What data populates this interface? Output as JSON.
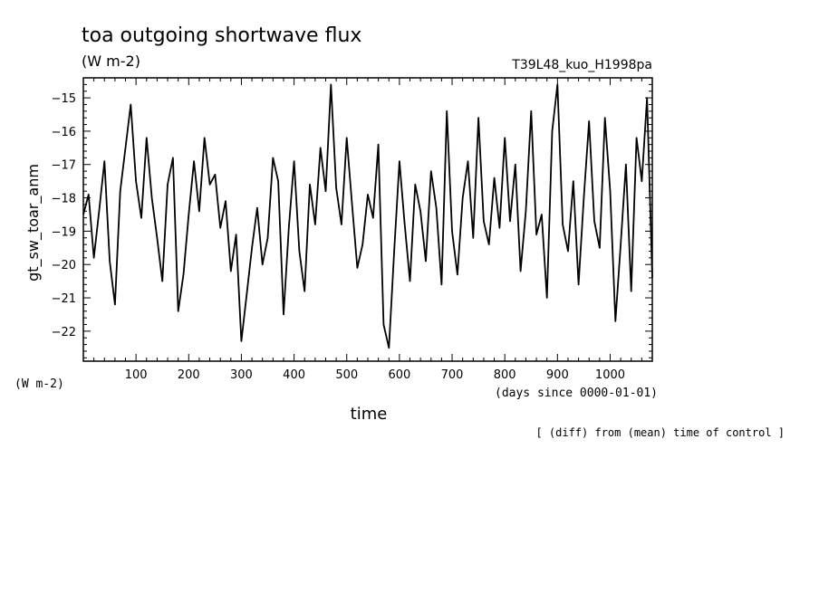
{
  "chart_data": {
    "type": "line",
    "title": "toa outgoing shortwave flux",
    "units_label": "(W m-2)",
    "run_label": "T39L48_kuo_H1998pa",
    "ylabel": "gt_sw_toar_anm",
    "y_units_label": "(W m-2)",
    "xlabel": "time",
    "x_units_label": "(days since 0000-01-01)",
    "note": "[ (diff) from (mean) time of control ]",
    "xlim": [
      0,
      1080
    ],
    "ylim": [
      -22.9,
      -14.4
    ],
    "x_ticks": [
      100,
      200,
      300,
      400,
      500,
      600,
      700,
      800,
      900,
      1000
    ],
    "y_ticks": [
      -22,
      -21,
      -20,
      -19,
      -18,
      -17,
      -16,
      -15
    ],
    "series": [
      {
        "x": [
          0,
          10,
          20,
          30,
          40,
          50,
          60,
          70,
          80,
          90,
          100,
          110,
          120,
          130,
          140,
          150,
          160,
          170,
          180,
          190,
          200,
          210,
          220,
          230,
          240,
          250,
          260,
          270,
          280,
          290,
          300,
          310,
          320,
          330,
          340,
          350,
          360,
          370,
          380,
          390,
          400,
          410,
          420,
          430,
          440,
          450,
          460,
          470,
          480,
          490,
          500,
          510,
          520,
          530,
          540,
          550,
          560,
          570,
          580,
          590,
          600,
          610,
          620,
          630,
          640,
          650,
          660,
          670,
          680,
          690,
          700,
          710,
          720,
          730,
          740,
          750,
          760,
          770,
          780,
          790,
          800,
          810,
          820,
          830,
          840,
          850,
          860,
          870,
          880,
          890,
          900,
          910,
          920,
          930,
          940,
          950,
          960,
          970,
          980,
          990,
          1000,
          1010,
          1020,
          1030,
          1040,
          1050,
          1060,
          1070,
          1080
        ],
        "y": [
          -18.5,
          -17.9,
          -19.8,
          -18.4,
          -16.9,
          -19.9,
          -21.2,
          -17.8,
          -16.5,
          -15.2,
          -17.5,
          -18.6,
          -16.2,
          -18.0,
          -19.2,
          -20.5,
          -17.6,
          -16.8,
          -21.4,
          -20.3,
          -18.5,
          -16.9,
          -18.4,
          -16.2,
          -17.6,
          -17.3,
          -18.9,
          -18.1,
          -20.2,
          -19.1,
          -22.3,
          -20.9,
          -19.5,
          -18.3,
          -20.0,
          -19.2,
          -16.8,
          -17.5,
          -21.5,
          -18.9,
          -16.9,
          -19.6,
          -20.8,
          -17.6,
          -18.8,
          -16.5,
          -17.8,
          -14.6,
          -17.7,
          -18.8,
          -16.2,
          -18.2,
          -20.1,
          -19.4,
          -17.9,
          -18.6,
          -16.4,
          -21.8,
          -22.5,
          -19.6,
          -16.9,
          -18.8,
          -20.5,
          -17.6,
          -18.4,
          -19.9,
          -17.2,
          -18.3,
          -20.6,
          -15.4,
          -19.0,
          -20.3,
          -18.0,
          -16.9,
          -19.2,
          -15.6,
          -18.7,
          -19.4,
          -17.4,
          -18.9,
          -16.2,
          -18.7,
          -17.0,
          -20.2,
          -18.4,
          -15.4,
          -19.1,
          -18.5,
          -21.0,
          -16.0,
          -14.6,
          -18.8,
          -19.6,
          -17.5,
          -20.6,
          -18.0,
          -15.7,
          -18.7,
          -19.5,
          -15.6,
          -17.8,
          -21.7,
          -19.4,
          -17.0,
          -20.8,
          -16.2,
          -17.5,
          -15.0,
          -20.4
        ]
      }
    ]
  }
}
